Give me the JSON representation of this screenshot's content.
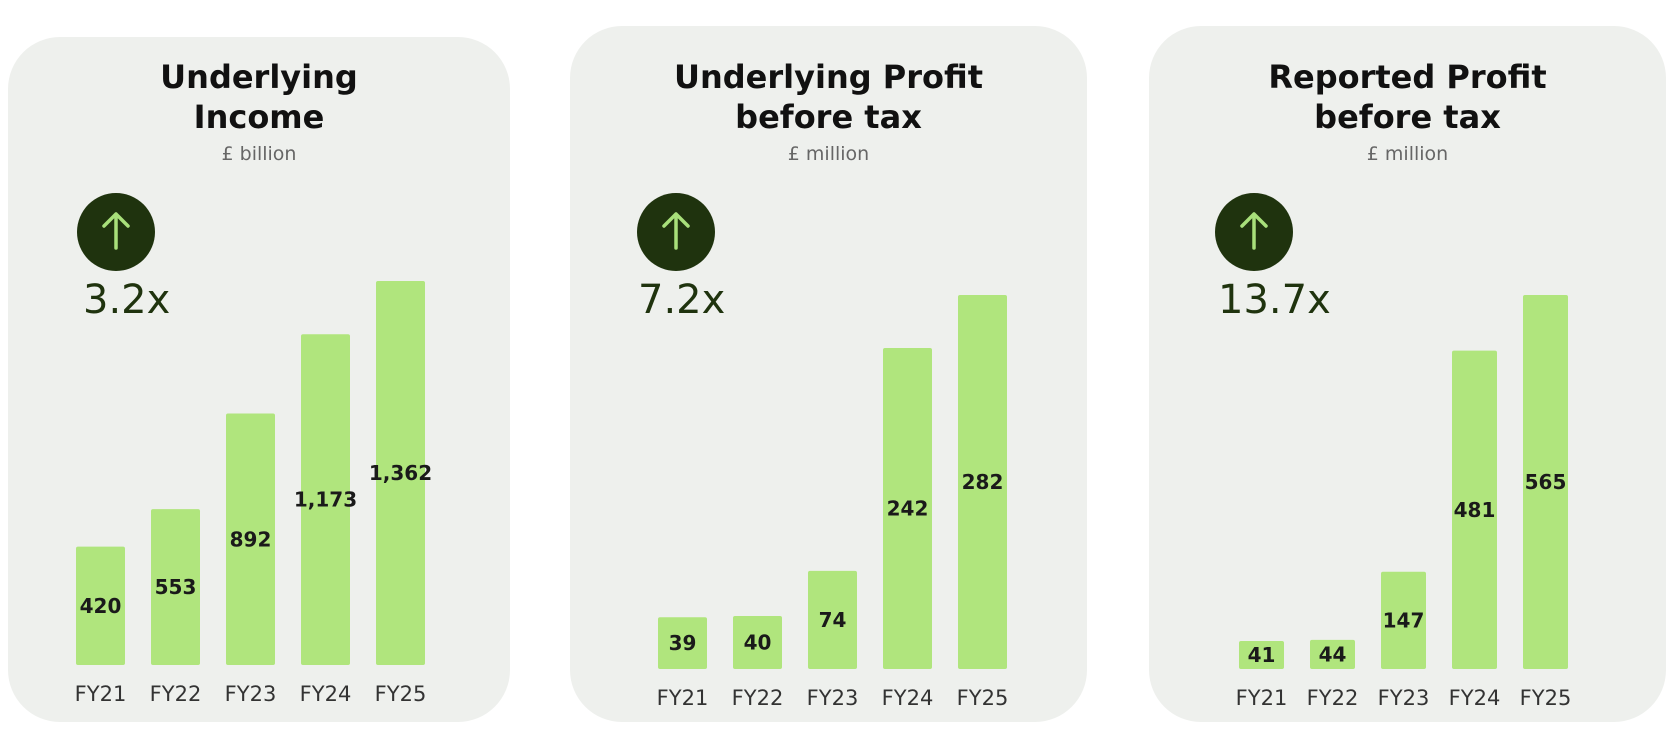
{
  "colors": {
    "card_bg": "#eef0ed",
    "bar": "#b0e57d",
    "badge": "#1f330e",
    "arrow": "#a8e07a"
  },
  "chart_data": [
    {
      "type": "bar",
      "title": "Underlying Income",
      "title_lines": [
        "Underlying",
        "Income"
      ],
      "unit": "£ billion",
      "badge_icon": "up-arrow-icon",
      "multiplier": "3.2x",
      "categories": [
        "FY21",
        "FY22",
        "FY23",
        "FY24",
        "FY25"
      ],
      "values": [
        420,
        553,
        892,
        1173,
        1362
      ],
      "value_labels": [
        "420",
        "553",
        "892",
        "1,173",
        "1,362"
      ],
      "ylim": [
        0,
        1362
      ]
    },
    {
      "type": "bar",
      "title": "Underlying Profit before tax",
      "title_lines": [
        "Underlying Profit",
        "before tax"
      ],
      "unit": "£ million",
      "badge_icon": "up-arrow-icon",
      "multiplier": "7.2x",
      "categories": [
        "FY21",
        "FY22",
        "FY23",
        "FY24",
        "FY25"
      ],
      "values": [
        39,
        40,
        74,
        242,
        282
      ],
      "value_labels": [
        "39",
        "40",
        "74",
        "242",
        "282"
      ],
      "ylim": [
        0,
        282
      ]
    },
    {
      "type": "bar",
      "title": "Reported Profit before tax",
      "title_lines": [
        "Reported Profit",
        "before tax"
      ],
      "unit": "£ million",
      "badge_icon": "up-arrow-icon",
      "multiplier": "13.7x",
      "categories": [
        "FY21",
        "FY22",
        "FY23",
        "FY24",
        "FY25"
      ],
      "values": [
        41,
        44,
        147,
        481,
        565
      ],
      "value_labels": [
        "41",
        "44",
        "147",
        "481",
        "565"
      ],
      "ylim": [
        0,
        565
      ]
    }
  ]
}
